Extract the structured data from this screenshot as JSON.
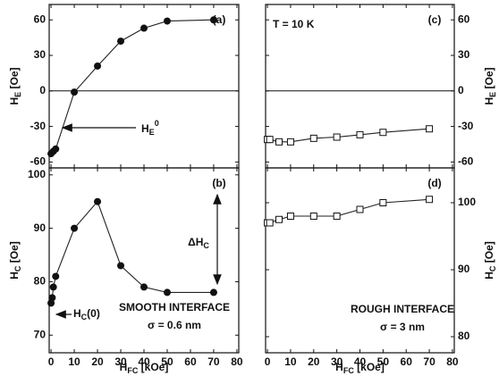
{
  "chart_data": [
    {
      "type": "scatter",
      "label": "(a)",
      "ylabel": [
        {
          "text": "H"
        },
        {
          "text": "E",
          "sub": true
        },
        {
          "text": " [Oe]"
        }
      ],
      "xlim": [
        -0.8,
        80.8
      ],
      "xticks": [
        0,
        10,
        20,
        30,
        40,
        50,
        60,
        70,
        80
      ],
      "show_xtick_labels": false,
      "ylim": [
        -65,
        73
      ],
      "yticks": [
        -60,
        -30,
        0,
        30,
        60
      ],
      "yaxis_side": "left",
      "hline": 0,
      "series": [
        {
          "marker": "filled-circle",
          "color": "#111",
          "x": [
            0,
            1,
            2,
            10,
            20,
            30,
            40,
            50,
            70
          ],
          "values": [
            -53,
            -51,
            -49,
            -1,
            21,
            42,
            53,
            59,
            60
          ]
        }
      ],
      "annotations": [
        [
          {
            "text": "H"
          },
          {
            "text": "E",
            "sub": true
          },
          {
            "text": "0",
            "sup": true
          }
        ]
      ]
    },
    {
      "type": "scatter",
      "label": "(b)",
      "ylabel": [
        {
          "text": "H"
        },
        {
          "text": "C",
          "sub": true
        },
        {
          "text": " [Oe]"
        }
      ],
      "xlabel": [
        {
          "text": "H"
        },
        {
          "text": "FC",
          "sub": true
        },
        {
          "text": " [kOe]"
        }
      ],
      "xlim": [
        -0.8,
        80.8
      ],
      "xticks": [
        0,
        10,
        20,
        30,
        40,
        50,
        60,
        70,
        80
      ],
      "show_xtick_labels": true,
      "ylim": [
        66.7,
        101.3
      ],
      "yticks": [
        70,
        80,
        90,
        100
      ],
      "yaxis_side": "left",
      "series": [
        {
          "marker": "filled-circle",
          "color": "#111",
          "x": [
            0,
            0.5,
            1,
            2,
            10,
            20,
            30,
            40,
            50,
            70
          ],
          "values": [
            76,
            77,
            79,
            81,
            90,
            95,
            83,
            79,
            78,
            78
          ]
        }
      ],
      "annotations": [
        [
          {
            "text": "ΔH"
          },
          {
            "text": "C",
            "sub": true
          }
        ],
        [
          {
            "text": "H"
          },
          {
            "text": "C",
            "sub": true
          },
          {
            "text": "(0)"
          }
        ],
        [
          {
            "text": "SMOOTH INTERFACE"
          }
        ],
        [
          {
            "text": "σ = 0.6 nm"
          }
        ]
      ]
    },
    {
      "type": "scatter",
      "label": "(c)",
      "ylabel": [
        {
          "text": "H"
        },
        {
          "text": "E",
          "sub": true
        },
        {
          "text": " [Oe]"
        }
      ],
      "xlim": [
        -0.8,
        80.8
      ],
      "xticks": [
        0,
        10,
        20,
        30,
        40,
        50,
        60,
        70,
        80
      ],
      "show_xtick_labels": false,
      "ylim": [
        -65,
        73
      ],
      "yticks": [
        -60,
        -30,
        0,
        30,
        60
      ],
      "yaxis_side": "right",
      "hline": 0,
      "series": [
        {
          "marker": "open-square",
          "color": "#111",
          "x": [
            0,
            1,
            5,
            10,
            20,
            30,
            40,
            50,
            70
          ],
          "values": [
            -41,
            -41,
            -43,
            -43,
            -40,
            -39,
            -37,
            -35,
            -32
          ]
        }
      ],
      "annotations": [
        [
          {
            "text": "T = 10 K"
          }
        ]
      ]
    },
    {
      "type": "scatter",
      "label": "(d)",
      "ylabel": [
        {
          "text": "H"
        },
        {
          "text": "C",
          "sub": true
        },
        {
          "text": " [Oe]"
        }
      ],
      "xlabel": [
        {
          "text": "H"
        },
        {
          "text": "FC",
          "sub": true
        },
        {
          "text": " [kOe]"
        }
      ],
      "xlim": [
        -0.8,
        80.8
      ],
      "xticks": [
        0,
        10,
        20,
        30,
        40,
        50,
        60,
        70,
        80
      ],
      "show_xtick_labels": true,
      "ylim": [
        77.6,
        105.2
      ],
      "yticks": [
        80,
        90,
        100
      ],
      "yaxis_side": "right",
      "series": [
        {
          "marker": "open-square",
          "color": "#111",
          "x": [
            0,
            1,
            5,
            10,
            20,
            30,
            40,
            50,
            70
          ],
          "values": [
            97,
            97,
            97.5,
            98,
            98,
            98,
            99,
            100,
            100.5
          ]
        }
      ],
      "annotations": [
        [
          {
            "text": "ROUGH INTERFACE"
          }
        ],
        [
          {
            "text": "σ = 3 nm"
          }
        ]
      ]
    }
  ]
}
